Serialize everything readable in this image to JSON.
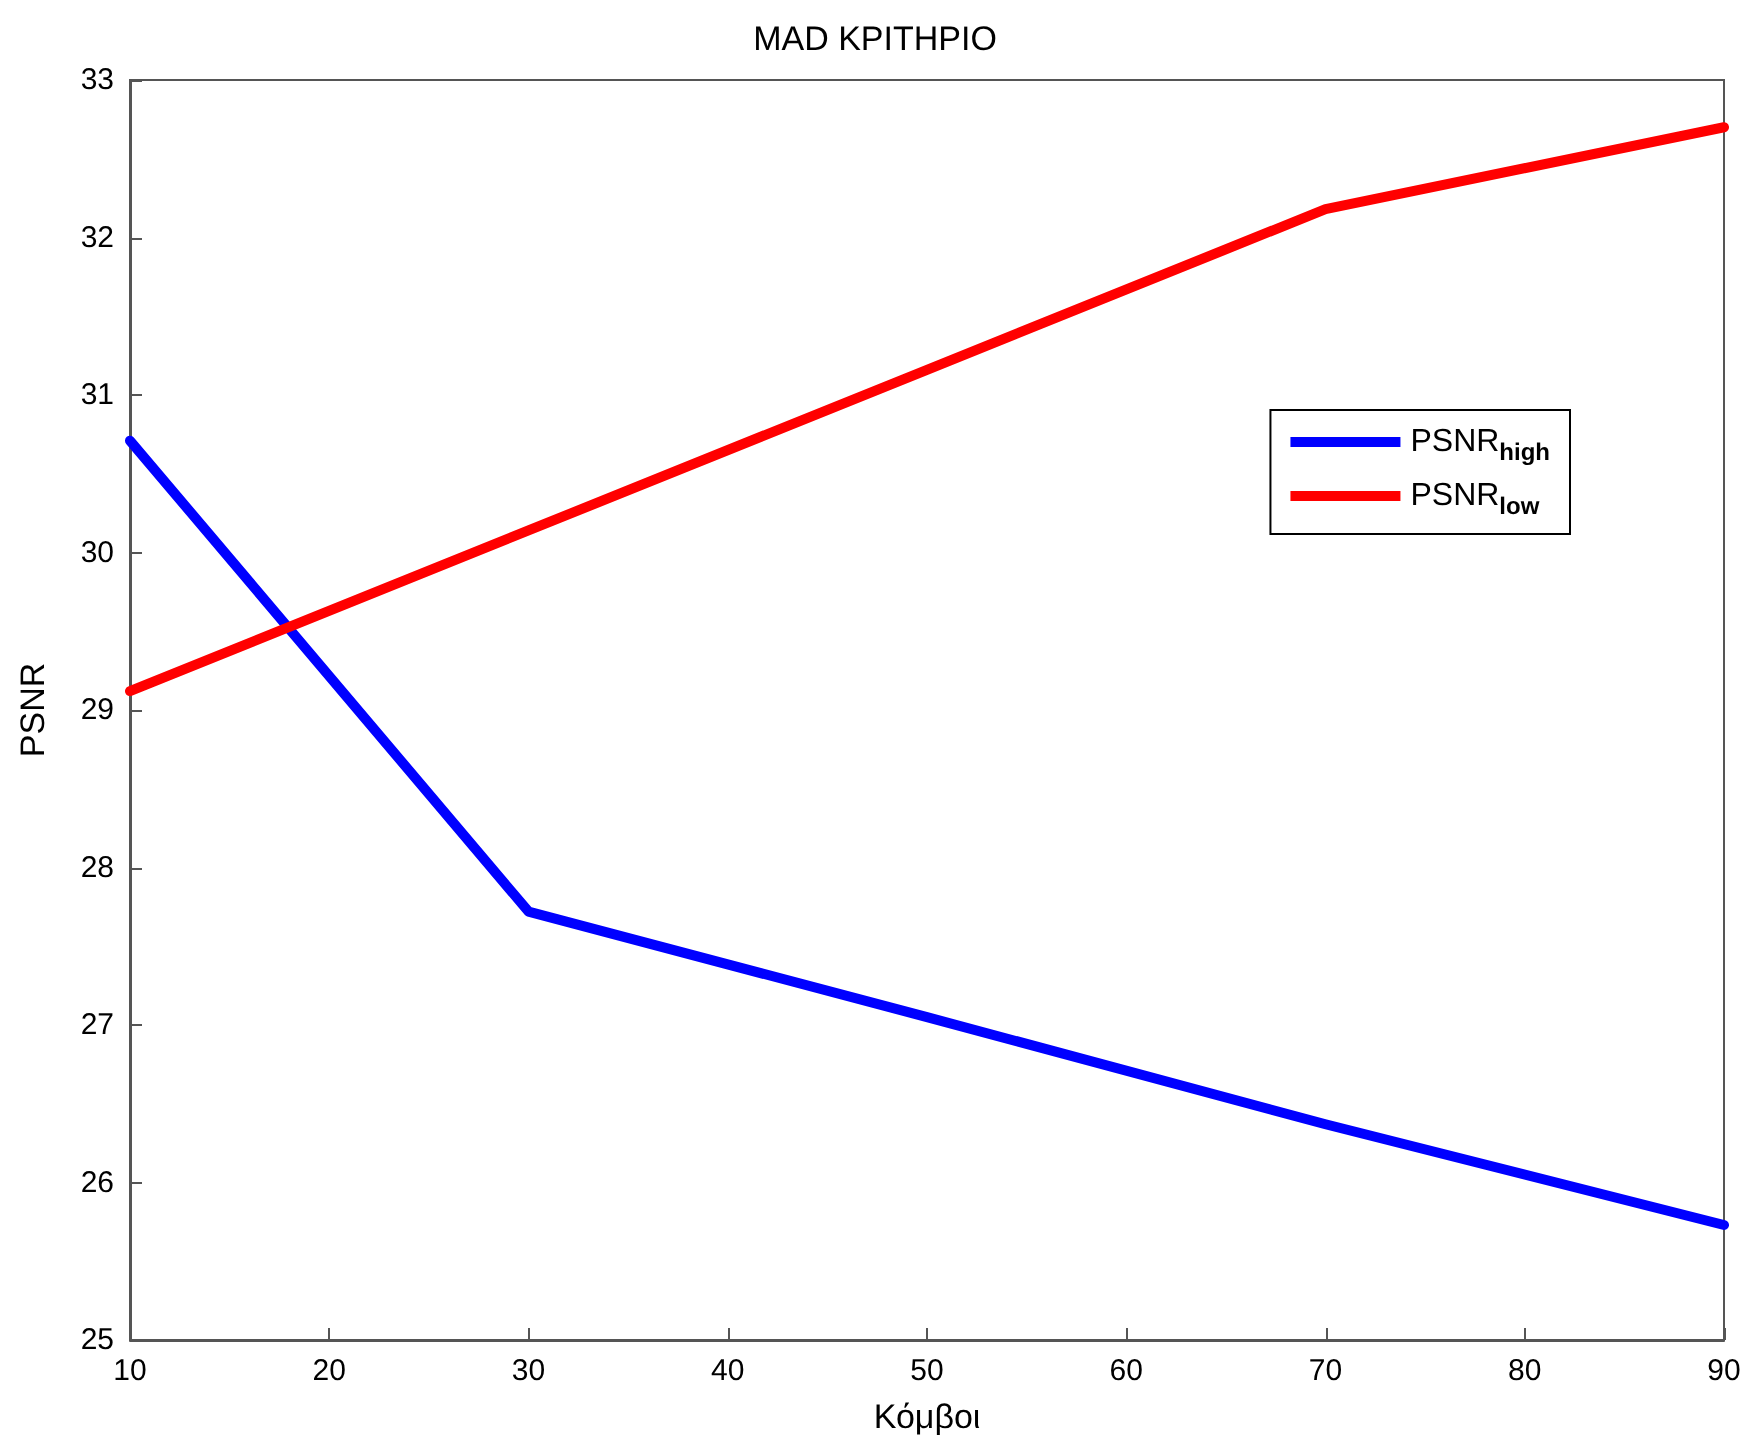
{
  "chart_data": {
    "type": "line",
    "title": "MAD ΚΡΙΤΗΡΙΟ",
    "xlabel": "Κόμβοι",
    "ylabel": "PSNR",
    "x": [
      10,
      30,
      50,
      70,
      90
    ],
    "series": [
      {
        "name": "PSNR$_{high}$",
        "color": "#0000ff",
        "values": [
          30.71,
          27.72,
          27.05,
          26.37,
          25.73
        ]
      },
      {
        "name": "PSNR$_{low}$",
        "color": "#ff0000",
        "values": [
          29.12,
          30.14,
          31.16,
          32.18,
          32.7
        ]
      }
    ],
    "xlim": [
      10,
      90
    ],
    "xticks": [
      10,
      20,
      30,
      40,
      50,
      60,
      70,
      80,
      90
    ],
    "ylim": [
      25,
      33
    ],
    "yticks": [
      25,
      26,
      27,
      28,
      29,
      30,
      31,
      32,
      33
    ],
    "grid": false,
    "legend": "top right",
    "marker": "none",
    "line_style": "solid"
  }
}
